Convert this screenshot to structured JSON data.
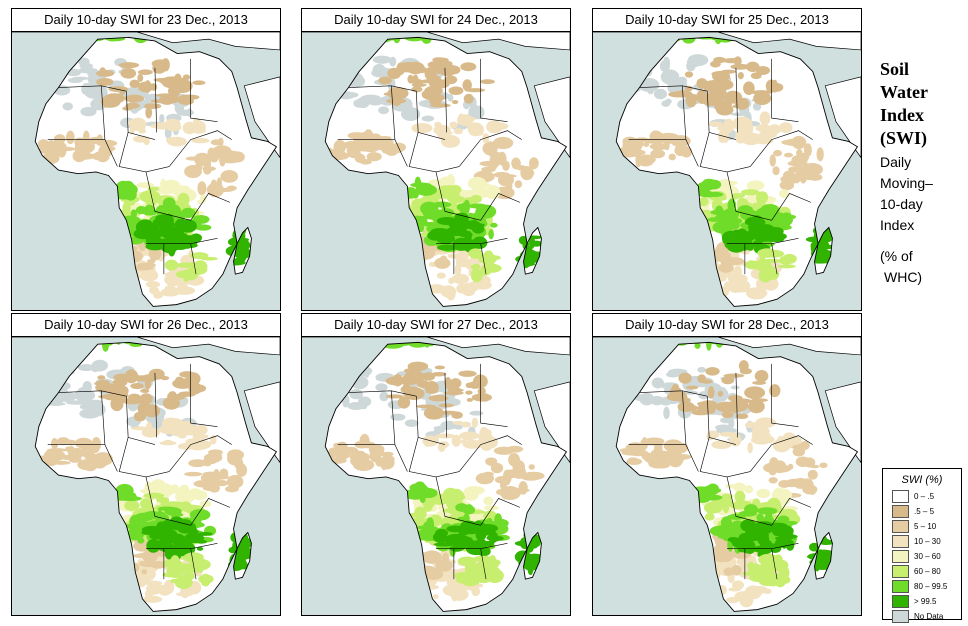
{
  "panels": [
    {
      "title": "Daily 10-day SWI for  23 Dec., 2013",
      "variant": 0
    },
    {
      "title": "Daily 10-day SWI for  24 Dec., 2013",
      "variant": 1
    },
    {
      "title": "Daily 10-day SWI for  25 Dec., 2013",
      "variant": 2
    },
    {
      "title": "Daily 10-day SWI for  26 Dec., 2013",
      "variant": 3
    },
    {
      "title": "Daily 10-day SWI for  27 Dec., 2013",
      "variant": 4
    },
    {
      "title": "Daily 10-day SWI for  28 Dec., 2013",
      "variant": 5
    }
  ],
  "side_title": {
    "line1": "Soil",
    "line2": "Water",
    "line3": "Index",
    "line4": "(SWI)"
  },
  "side_sub": {
    "line1": "Daily",
    "line2": "Moving–",
    "line3": "10-day",
    "line4": "Index",
    "line5": "(% of",
    "line6": "WHC)"
  },
  "legend": {
    "title": "SWI (%)",
    "items": [
      {
        "label": "0 – .5",
        "color": "#ffffff"
      },
      {
        "label": ".5 – 5",
        "color": "#d8b98a"
      },
      {
        "label": "5 – 10",
        "color": "#e6cca2"
      },
      {
        "label": "10 – 30",
        "color": "#f2e2c0"
      },
      {
        "label": "30 – 60",
        "color": "#f4f4c0"
      },
      {
        "label": "60 – 80",
        "color": "#c8ee70"
      },
      {
        "label": "80 – 99.5",
        "color": "#6edc28"
      },
      {
        "label": "> 99.5",
        "color": "#30b400"
      },
      {
        "label": "No Data",
        "color": "#cfd8d8"
      }
    ]
  },
  "colors": {
    "ocean": "#cfe0de",
    "land": "#ffffff",
    "nodata": "#cfd8d8"
  }
}
